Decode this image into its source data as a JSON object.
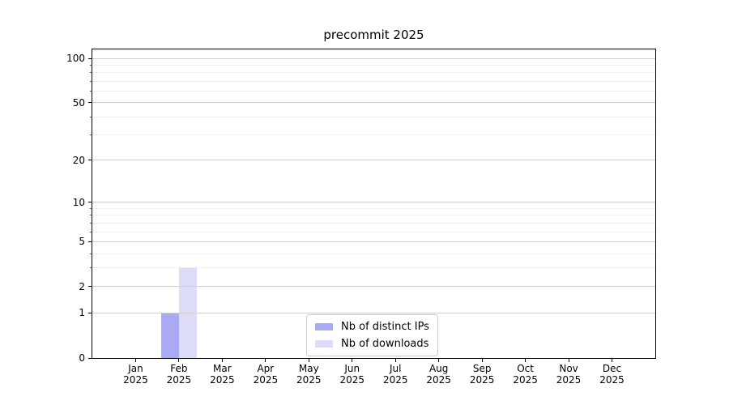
{
  "chart_data": {
    "type": "bar",
    "title": "precommit 2025",
    "categories": [
      "Jan 2025",
      "Feb 2025",
      "Mar 2025",
      "Apr 2025",
      "May 2025",
      "Jun 2025",
      "Jul 2025",
      "Aug 2025",
      "Sep 2025",
      "Oct 2025",
      "Nov 2025",
      "Dec 2025"
    ],
    "series": [
      {
        "name": "Nb of distinct IPs",
        "color": "#a9a9f4",
        "values": [
          0,
          1,
          0,
          0,
          0,
          0,
          0,
          0,
          0,
          0,
          0,
          0
        ]
      },
      {
        "name": "Nb of downloads",
        "color": "#dcdcf9",
        "values": [
          0,
          3,
          0,
          0,
          0,
          0,
          0,
          0,
          0,
          0,
          0,
          0
        ]
      }
    ],
    "yscale": "log1p",
    "ylim": [
      0,
      115
    ],
    "y_major_ticks": [
      0,
      1,
      2,
      5,
      10,
      20,
      50,
      100
    ],
    "y_minor_ticks": [
      3,
      4,
      6,
      7,
      8,
      9,
      30,
      40,
      60,
      70,
      80,
      90
    ],
    "xlabel": "",
    "ylabel": "",
    "grid": true,
    "legend_position": "lower-center-inside",
    "colors": {
      "axis": "#000000",
      "major_grid": "#cfcfcf",
      "minor_grid": "#ededed",
      "background": "#ffffff",
      "text": "#000000"
    }
  }
}
